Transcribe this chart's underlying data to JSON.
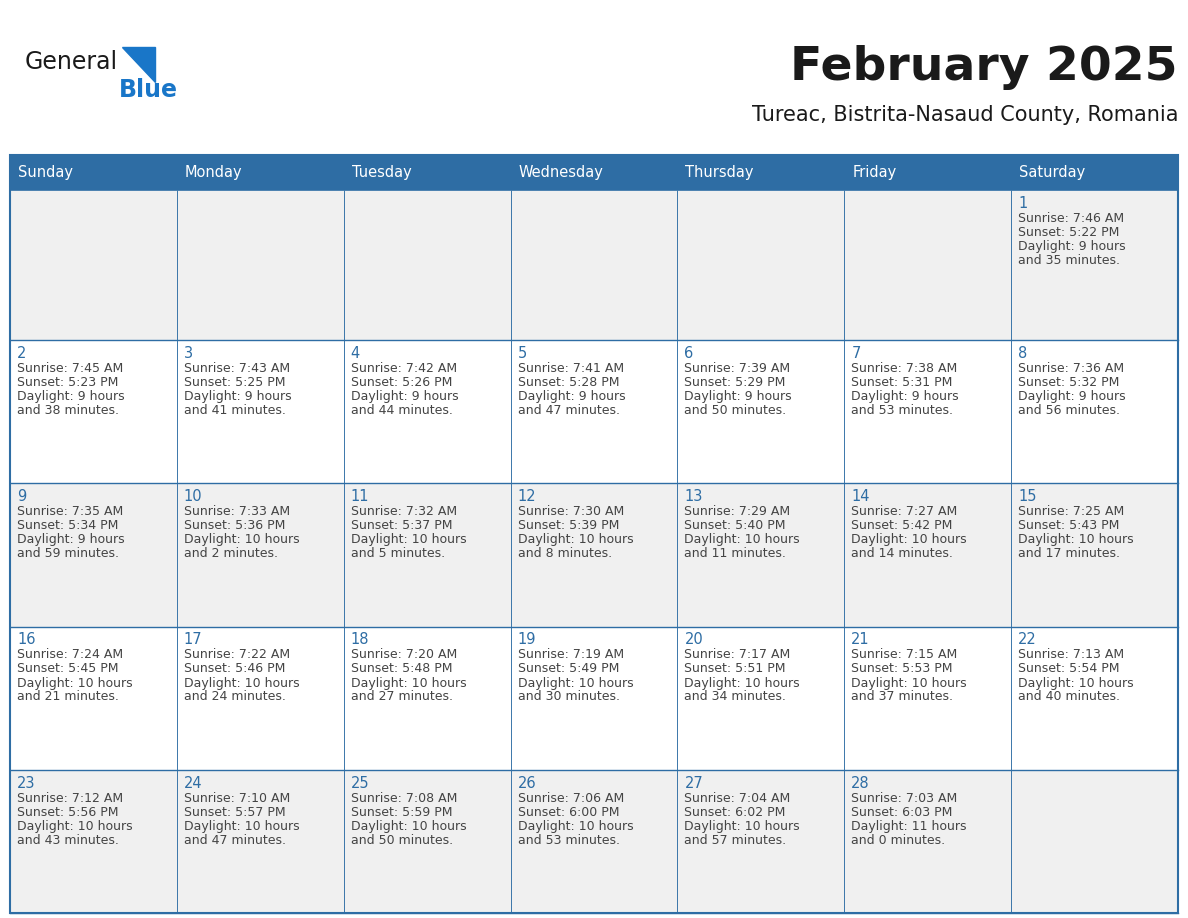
{
  "title": "February 2025",
  "subtitle": "Tureac, Bistrita-Nasaud County, Romania",
  "days_of_week": [
    "Sunday",
    "Monday",
    "Tuesday",
    "Wednesday",
    "Thursday",
    "Friday",
    "Saturday"
  ],
  "header_bg": "#2E6DA4",
  "header_text": "#FFFFFF",
  "cell_bg_odd": "#F0F0F0",
  "cell_bg_even": "#FFFFFF",
  "border_color": "#2E6DA4",
  "title_color": "#1a1a1a",
  "subtitle_color": "#1a1a1a",
  "day_num_color": "#2E6DA4",
  "cell_text_color": "#444444",
  "logo_general_color": "#1a1a1a",
  "logo_blue_color": "#1976C8",
  "calendar_data": [
    [
      null,
      null,
      null,
      null,
      null,
      null,
      {
        "day": 1,
        "sunrise": "7:46 AM",
        "sunset": "5:22 PM",
        "daylight_h": "9 hours",
        "daylight_m": "and 35 minutes."
      }
    ],
    [
      {
        "day": 2,
        "sunrise": "7:45 AM",
        "sunset": "5:23 PM",
        "daylight_h": "9 hours",
        "daylight_m": "and 38 minutes."
      },
      {
        "day": 3,
        "sunrise": "7:43 AM",
        "sunset": "5:25 PM",
        "daylight_h": "9 hours",
        "daylight_m": "and 41 minutes."
      },
      {
        "day": 4,
        "sunrise": "7:42 AM",
        "sunset": "5:26 PM",
        "daylight_h": "9 hours",
        "daylight_m": "and 44 minutes."
      },
      {
        "day": 5,
        "sunrise": "7:41 AM",
        "sunset": "5:28 PM",
        "daylight_h": "9 hours",
        "daylight_m": "and 47 minutes."
      },
      {
        "day": 6,
        "sunrise": "7:39 AM",
        "sunset": "5:29 PM",
        "daylight_h": "9 hours",
        "daylight_m": "and 50 minutes."
      },
      {
        "day": 7,
        "sunrise": "7:38 AM",
        "sunset": "5:31 PM",
        "daylight_h": "9 hours",
        "daylight_m": "and 53 minutes."
      },
      {
        "day": 8,
        "sunrise": "7:36 AM",
        "sunset": "5:32 PM",
        "daylight_h": "9 hours",
        "daylight_m": "and 56 minutes."
      }
    ],
    [
      {
        "day": 9,
        "sunrise": "7:35 AM",
        "sunset": "5:34 PM",
        "daylight_h": "9 hours",
        "daylight_m": "and 59 minutes."
      },
      {
        "day": 10,
        "sunrise": "7:33 AM",
        "sunset": "5:36 PM",
        "daylight_h": "10 hours",
        "daylight_m": "and 2 minutes."
      },
      {
        "day": 11,
        "sunrise": "7:32 AM",
        "sunset": "5:37 PM",
        "daylight_h": "10 hours",
        "daylight_m": "and 5 minutes."
      },
      {
        "day": 12,
        "sunrise": "7:30 AM",
        "sunset": "5:39 PM",
        "daylight_h": "10 hours",
        "daylight_m": "and 8 minutes."
      },
      {
        "day": 13,
        "sunrise": "7:29 AM",
        "sunset": "5:40 PM",
        "daylight_h": "10 hours",
        "daylight_m": "and 11 minutes."
      },
      {
        "day": 14,
        "sunrise": "7:27 AM",
        "sunset": "5:42 PM",
        "daylight_h": "10 hours",
        "daylight_m": "and 14 minutes."
      },
      {
        "day": 15,
        "sunrise": "7:25 AM",
        "sunset": "5:43 PM",
        "daylight_h": "10 hours",
        "daylight_m": "and 17 minutes."
      }
    ],
    [
      {
        "day": 16,
        "sunrise": "7:24 AM",
        "sunset": "5:45 PM",
        "daylight_h": "10 hours",
        "daylight_m": "and 21 minutes."
      },
      {
        "day": 17,
        "sunrise": "7:22 AM",
        "sunset": "5:46 PM",
        "daylight_h": "10 hours",
        "daylight_m": "and 24 minutes."
      },
      {
        "day": 18,
        "sunrise": "7:20 AM",
        "sunset": "5:48 PM",
        "daylight_h": "10 hours",
        "daylight_m": "and 27 minutes."
      },
      {
        "day": 19,
        "sunrise": "7:19 AM",
        "sunset": "5:49 PM",
        "daylight_h": "10 hours",
        "daylight_m": "and 30 minutes."
      },
      {
        "day": 20,
        "sunrise": "7:17 AM",
        "sunset": "5:51 PM",
        "daylight_h": "10 hours",
        "daylight_m": "and 34 minutes."
      },
      {
        "day": 21,
        "sunrise": "7:15 AM",
        "sunset": "5:53 PM",
        "daylight_h": "10 hours",
        "daylight_m": "and 37 minutes."
      },
      {
        "day": 22,
        "sunrise": "7:13 AM",
        "sunset": "5:54 PM",
        "daylight_h": "10 hours",
        "daylight_m": "and 40 minutes."
      }
    ],
    [
      {
        "day": 23,
        "sunrise": "7:12 AM",
        "sunset": "5:56 PM",
        "daylight_h": "10 hours",
        "daylight_m": "and 43 minutes."
      },
      {
        "day": 24,
        "sunrise": "7:10 AM",
        "sunset": "5:57 PM",
        "daylight_h": "10 hours",
        "daylight_m": "and 47 minutes."
      },
      {
        "day": 25,
        "sunrise": "7:08 AM",
        "sunset": "5:59 PM",
        "daylight_h": "10 hours",
        "daylight_m": "and 50 minutes."
      },
      {
        "day": 26,
        "sunrise": "7:06 AM",
        "sunset": "6:00 PM",
        "daylight_h": "10 hours",
        "daylight_m": "and 53 minutes."
      },
      {
        "day": 27,
        "sunrise": "7:04 AM",
        "sunset": "6:02 PM",
        "daylight_h": "10 hours",
        "daylight_m": "and 57 minutes."
      },
      {
        "day": 28,
        "sunrise": "7:03 AM",
        "sunset": "6:03 PM",
        "daylight_h": "11 hours",
        "daylight_m": "and 0 minutes."
      },
      null
    ]
  ]
}
